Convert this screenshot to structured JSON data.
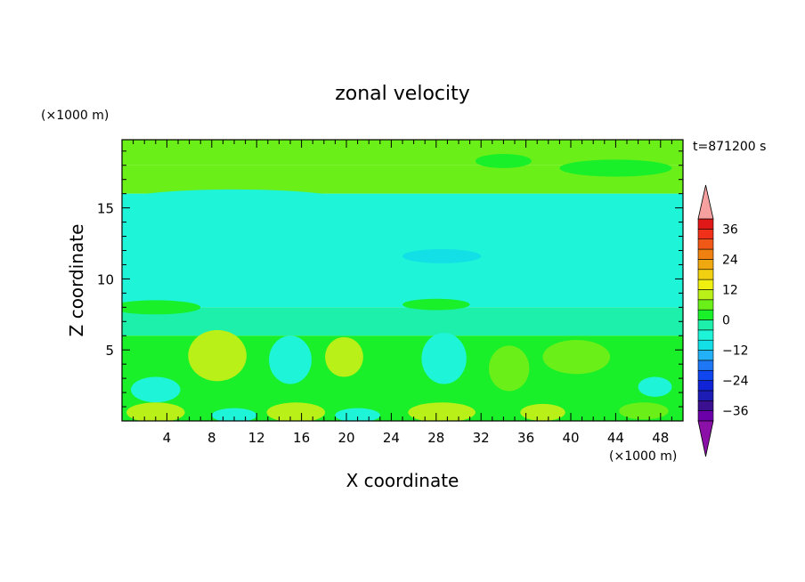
{
  "chart_data": {
    "type": "heatmap",
    "title": "zonal velocity",
    "xlabel": "X coordinate",
    "ylabel": "Z coordinate",
    "x_unit": "(×1000 m)",
    "y_unit": "(×1000 m)",
    "time_label": "t=871200 s",
    "xlim": [
      0,
      50
    ],
    "ylim": [
      0,
      19.8
    ],
    "x_ticks": [
      4,
      8,
      12,
      16,
      20,
      24,
      28,
      32,
      36,
      40,
      44,
      48
    ],
    "y_ticks": [
      5,
      10,
      15
    ],
    "colorbar": {
      "levels": [
        -40,
        -36,
        -32,
        -28,
        -24,
        -20,
        -16,
        -12,
        -8,
        -4,
        0,
        4,
        8,
        12,
        16,
        20,
        24,
        28,
        32,
        36,
        40
      ],
      "labels": [
        36,
        24,
        12,
        0,
        -12,
        -24,
        -36
      ],
      "colors": [
        "#6b00a8",
        "#3a1090",
        "#1d1db5",
        "#1024d6",
        "#1046f0",
        "#1e78f6",
        "#22b0f6",
        "#12e0e6",
        "#1ef4d8",
        "#1cf0aa",
        "#19f02a",
        "#6af018",
        "#b8f018",
        "#f0f010",
        "#f0d010",
        "#f0a810",
        "#f08010",
        "#f05818",
        "#f03018",
        "#e01818"
      ],
      "under_color": "#8b10a8",
      "over_color": "#f6a0a0"
    },
    "bands": [
      {
        "z_range": [
          18.0,
          19.8
        ],
        "value": 6
      },
      {
        "z_range": [
          16.0,
          18.0
        ],
        "value": 4
      },
      {
        "z_range": [
          8.0,
          16.0
        ],
        "value": -5
      },
      {
        "z_range": [
          6.0,
          8.0
        ],
        "value": -2
      },
      {
        "z_range": [
          0.0,
          6.0
        ],
        "value": 2
      }
    ],
    "blobs": [
      {
        "x": 13.5,
        "z": 18.8,
        "rx": 8,
        "rz": 0.7,
        "value": 7
      },
      {
        "x": 34,
        "z": 18.3,
        "rx": 2.5,
        "rz": 0.5,
        "value": 2
      },
      {
        "x": 44,
        "z": 17.8,
        "rx": 5,
        "rz": 0.6,
        "value": 2
      },
      {
        "x": 10,
        "z": 15.5,
        "rx": 10,
        "rz": 0.8,
        "value": -7
      },
      {
        "x": 28.5,
        "z": 11.6,
        "rx": 3.5,
        "rz": 0.5,
        "value": -9
      },
      {
        "x": 3,
        "z": 8.0,
        "rx": 4,
        "rz": 0.5,
        "value": 1
      },
      {
        "x": 28,
        "z": 8.2,
        "rx": 3,
        "rz": 0.4,
        "value": 1
      },
      {
        "x": 8.5,
        "z": 4.6,
        "rx": 2.6,
        "rz": 1.8,
        "value": 8
      },
      {
        "x": 8.3,
        "z": 4.6,
        "rx": 1.2,
        "rz": 0.8,
        "value": 11
      },
      {
        "x": 15,
        "z": 4.3,
        "rx": 1.9,
        "rz": 1.7,
        "value": -6
      },
      {
        "x": 19.8,
        "z": 4.5,
        "rx": 1.7,
        "rz": 1.4,
        "value": 8
      },
      {
        "x": 28.7,
        "z": 4.4,
        "rx": 2.0,
        "rz": 1.8,
        "value": -6
      },
      {
        "x": 34.5,
        "z": 3.7,
        "rx": 1.8,
        "rz": 1.6,
        "value": 7
      },
      {
        "x": 40.5,
        "z": 4.5,
        "rx": 3.0,
        "rz": 1.2,
        "value": 7
      },
      {
        "x": 3.0,
        "z": 2.2,
        "rx": 2.2,
        "rz": 0.9,
        "value": -5
      },
      {
        "x": 47.5,
        "z": 2.4,
        "rx": 1.5,
        "rz": 0.7,
        "value": -5
      },
      {
        "x": 3.0,
        "z": 0.6,
        "rx": 2.6,
        "rz": 0.7,
        "value": 8
      },
      {
        "x": 15.5,
        "z": 0.6,
        "rx": 2.6,
        "rz": 0.7,
        "value": 10
      },
      {
        "x": 28.5,
        "z": 0.6,
        "rx": 3.0,
        "rz": 0.7,
        "value": 10
      },
      {
        "x": 10.0,
        "z": 0.4,
        "rx": 2.0,
        "rz": 0.5,
        "value": -8
      },
      {
        "x": 21.0,
        "z": 0.4,
        "rx": 2.0,
        "rz": 0.5,
        "value": -8
      },
      {
        "x": 37.5,
        "z": 0.6,
        "rx": 2.0,
        "rz": 0.6,
        "value": 8
      },
      {
        "x": 46.5,
        "z": 0.7,
        "rx": 2.2,
        "rz": 0.6,
        "value": 7
      }
    ]
  }
}
